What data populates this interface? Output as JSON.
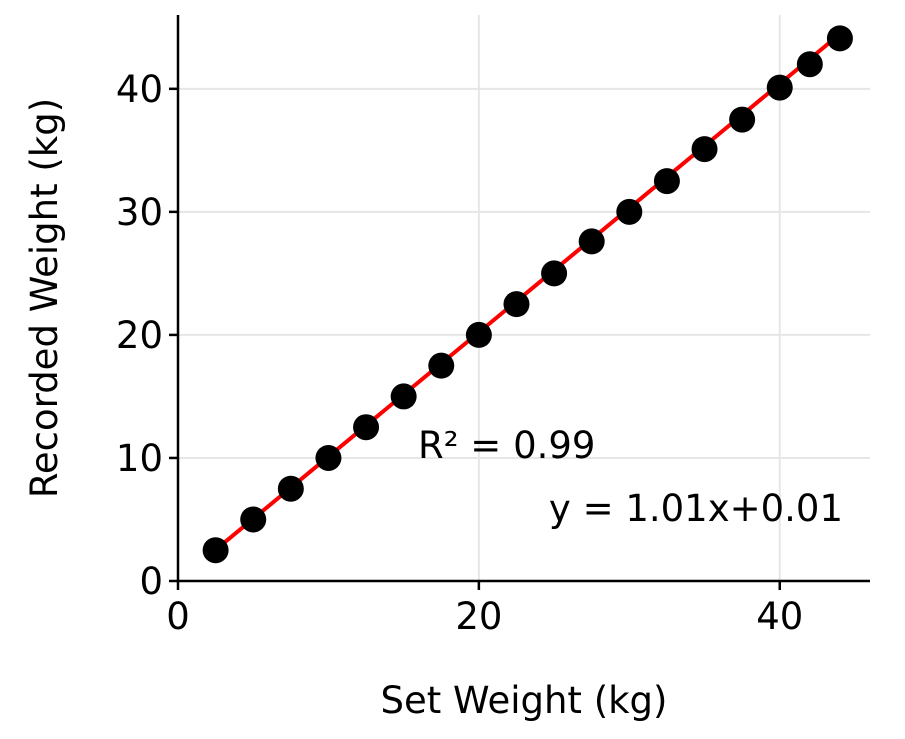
{
  "chart_data": {
    "type": "scatter",
    "title": "",
    "xlabel": "Set Weight (kg)",
    "ylabel": "Recorded Weight (kg)",
    "xlim": [
      0,
      46
    ],
    "ylim": [
      0,
      46
    ],
    "xticks": [
      0,
      20,
      40
    ],
    "yticks": [
      0,
      10,
      20,
      30,
      40
    ],
    "grid": true,
    "series": [
      {
        "type": "scatter",
        "color": "#000000",
        "x": [
          2.5,
          5,
          7.5,
          10,
          12.5,
          15,
          17.5,
          20,
          22.5,
          25,
          27.5,
          30,
          32.5,
          35,
          37.5,
          40,
          42,
          44
        ],
        "y": [
          2.5,
          5,
          7.5,
          10,
          12.5,
          15,
          17.5,
          20,
          22.5,
          25,
          27.6,
          30,
          32.5,
          35.1,
          37.5,
          40.1,
          42,
          44.1
        ]
      },
      {
        "type": "line",
        "color": "#ff0000",
        "x": [
          2.5,
          44
        ],
        "y": [
          2.535,
          44.45
        ]
      }
    ],
    "annotations": {
      "r2": "R² = 0.99",
      "equation": "y = 1.01x+0.01"
    }
  }
}
